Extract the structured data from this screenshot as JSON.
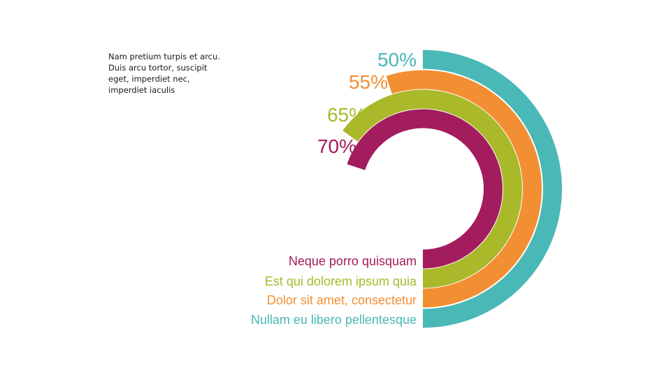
{
  "note": {
    "text": "Nam pretium turpis et arcu. Duis arcu tortor, suscipit eget, imperdiet nec, imperdiet iaculis"
  },
  "chart_data": {
    "type": "radial-bar",
    "series": [
      {
        "name": "Nullam eu libero pellentesque",
        "value": 50,
        "value_label": "50%",
        "color": "#49b8b6"
      },
      {
        "name": "Dolor sit amet, consectetur",
        "value": 55,
        "value_label": "55%",
        "color": "#f28f33"
      },
      {
        "name": "Est qui dolorem ipsum quia",
        "value": 65,
        "value_label": "65%",
        "color": "#a9b92a"
      },
      {
        "name": "Neque porro quisquam",
        "value": 70,
        "value_label": "70%",
        "color": "#a31c5d"
      }
    ]
  }
}
